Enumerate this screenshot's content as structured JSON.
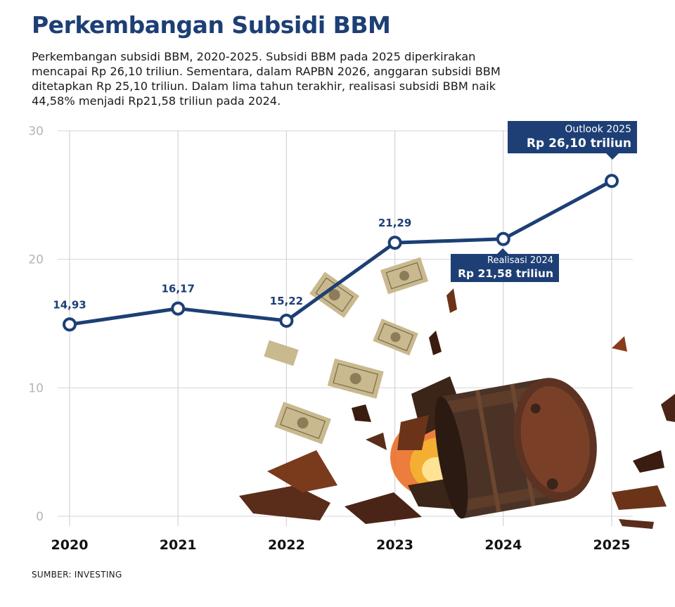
{
  "header": {
    "title": "Perkembangan Subsidi BBM",
    "description": "Perkembangan subsidi BBM, 2020-2025. Subsidi BBM pada 2025 diperkirakan mencapai Rp 26,10 triliun. Sementara, dalam RAPBN 2026, anggaran subsidi BBM ditetapkan Rp 25,10 triliun. Dalam lima tahun terakhir, realisasi subsidi BBM naik 44,58% menjadi Rp21,58 triliun pada 2024."
  },
  "footer": {
    "source": "SUMBER: INVESTING"
  },
  "colors": {
    "line": "#1d3f75",
    "grid": "#d4d4d4",
    "tick": "#b5b5b5",
    "accent": "#1d3f75"
  },
  "callouts": {
    "outlook": {
      "label": "Outlook 2025",
      "value": "Rp 26,10 triliun"
    },
    "realisasi": {
      "label": "Realisasi 2024",
      "value": "Rp 21,58 triliun"
    }
  },
  "illustration": {
    "icon": "exploding-oil-barrel-with-flying-banknotes-illustration"
  },
  "chart_data": {
    "type": "line",
    "title": "Perkembangan Subsidi BBM",
    "x": [
      "2020",
      "2021",
      "2022",
      "2023",
      "2024",
      "2025"
    ],
    "values": [
      14.93,
      16.17,
      15.22,
      21.29,
      21.58,
      26.1
    ],
    "point_labels": [
      "14,93",
      "16,17",
      "15,22",
      "21,29",
      "",
      ""
    ],
    "yticks": [
      "0",
      "10",
      "20",
      "30"
    ],
    "ylim": [
      0,
      30
    ],
    "grid": true,
    "xlabel": "",
    "ylabel": ""
  }
}
